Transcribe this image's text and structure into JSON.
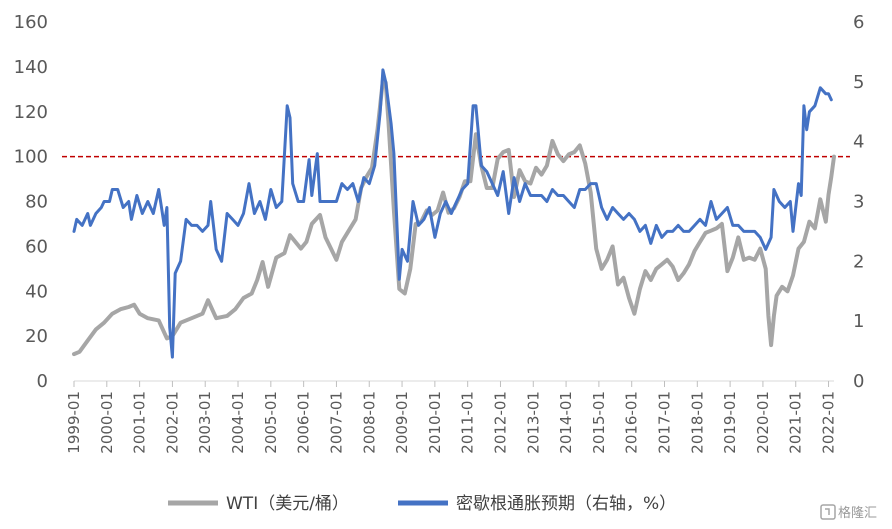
{
  "chart_data": {
    "type": "line",
    "xlabel": "",
    "ylabel_left": "",
    "ylabel_right": "",
    "ylim_left": [
      0,
      160
    ],
    "yticks_left": [
      0,
      20,
      40,
      60,
      80,
      100,
      120,
      140,
      160
    ],
    "ylim_right": [
      0,
      6
    ],
    "yticks_right": [
      0,
      1,
      2,
      3,
      4,
      5,
      6
    ],
    "x_start": "1999-01",
    "x_end": "2022-03",
    "x_tick_labels": [
      "1999-01",
      "2000-01",
      "2001-01",
      "2002-01",
      "2003-01",
      "2004-01",
      "2005-01",
      "2006-01",
      "2007-01",
      "2008-01",
      "2009-01",
      "2010-01",
      "2011-01",
      "2012-01",
      "2013-01",
      "2014-01",
      "2015-01",
      "2016-01",
      "2017-01",
      "2018-01",
      "2019-01",
      "2020-01",
      "2021-01",
      "2022-01"
    ],
    "reference_line": {
      "value": 100,
      "axis": "left",
      "color": "#c00000",
      "style": "dashed"
    },
    "grid": false,
    "legend_position": "bottom",
    "series": [
      {
        "name": "WTI（美元/桶）",
        "axis": "left",
        "color": "#a6a6a6",
        "points": [
          [
            "1999-01",
            12
          ],
          [
            "1999-03",
            13
          ],
          [
            "1999-06",
            18
          ],
          [
            "1999-09",
            23
          ],
          [
            "1999-12",
            26
          ],
          [
            "2000-03",
            30
          ],
          [
            "2000-06",
            32
          ],
          [
            "2000-09",
            33
          ],
          [
            "2000-11",
            34
          ],
          [
            "2001-01",
            30
          ],
          [
            "2001-04",
            28
          ],
          [
            "2001-08",
            27
          ],
          [
            "2001-11",
            19
          ],
          [
            "2002-01",
            20
          ],
          [
            "2002-04",
            26
          ],
          [
            "2002-08",
            28
          ],
          [
            "2002-12",
            30
          ],
          [
            "2003-02",
            36
          ],
          [
            "2003-05",
            28
          ],
          [
            "2003-09",
            29
          ],
          [
            "2003-12",
            32
          ],
          [
            "2004-03",
            37
          ],
          [
            "2004-06",
            39
          ],
          [
            "2004-08",
            45
          ],
          [
            "2004-10",
            53
          ],
          [
            "2004-12",
            42
          ],
          [
            "2005-03",
            55
          ],
          [
            "2005-06",
            57
          ],
          [
            "2005-08",
            65
          ],
          [
            "2005-10",
            62
          ],
          [
            "2005-12",
            59
          ],
          [
            "2006-02",
            62
          ],
          [
            "2006-04",
            70
          ],
          [
            "2006-07",
            74
          ],
          [
            "2006-09",
            64
          ],
          [
            "2006-11",
            59
          ],
          [
            "2007-01",
            54
          ],
          [
            "2007-03",
            62
          ],
          [
            "2007-06",
            68
          ],
          [
            "2007-08",
            72
          ],
          [
            "2007-10",
            86
          ],
          [
            "2007-12",
            91
          ],
          [
            "2008-02",
            95
          ],
          [
            "2008-04",
            112
          ],
          [
            "2008-06",
            134
          ],
          [
            "2008-07",
            133
          ],
          [
            "2008-08",
            116
          ],
          [
            "2008-10",
            76
          ],
          [
            "2008-12",
            41
          ],
          [
            "2009-02",
            39
          ],
          [
            "2009-04",
            50
          ],
          [
            "2009-06",
            70
          ],
          [
            "2009-08",
            71
          ],
          [
            "2009-10",
            76
          ],
          [
            "2009-12",
            74
          ],
          [
            "2010-02",
            76
          ],
          [
            "2010-04",
            84
          ],
          [
            "2010-06",
            75
          ],
          [
            "2010-08",
            77
          ],
          [
            "2010-10",
            82
          ],
          [
            "2010-12",
            89
          ],
          [
            "2011-02",
            89
          ],
          [
            "2011-04",
            110
          ],
          [
            "2011-06",
            96
          ],
          [
            "2011-08",
            86
          ],
          [
            "2011-10",
            86
          ],
          [
            "2011-12",
            99
          ],
          [
            "2012-02",
            102
          ],
          [
            "2012-04",
            103
          ],
          [
            "2012-06",
            82
          ],
          [
            "2012-08",
            94
          ],
          [
            "2012-10",
            89
          ],
          [
            "2012-12",
            88
          ],
          [
            "2013-02",
            95
          ],
          [
            "2013-04",
            92
          ],
          [
            "2013-06",
            96
          ],
          [
            "2013-08",
            107
          ],
          [
            "2013-10",
            101
          ],
          [
            "2013-12",
            98
          ],
          [
            "2014-02",
            101
          ],
          [
            "2014-04",
            102
          ],
          [
            "2014-06",
            105
          ],
          [
            "2014-08",
            97
          ],
          [
            "2014-10",
            84
          ],
          [
            "2014-12",
            59
          ],
          [
            "2015-02",
            50
          ],
          [
            "2015-04",
            54
          ],
          [
            "2015-06",
            60
          ],
          [
            "2015-08",
            43
          ],
          [
            "2015-10",
            46
          ],
          [
            "2015-12",
            37
          ],
          [
            "2016-02",
            30
          ],
          [
            "2016-04",
            41
          ],
          [
            "2016-06",
            49
          ],
          [
            "2016-08",
            45
          ],
          [
            "2016-10",
            50
          ],
          [
            "2016-12",
            52
          ],
          [
            "2017-02",
            54
          ],
          [
            "2017-04",
            51
          ],
          [
            "2017-06",
            45
          ],
          [
            "2017-08",
            48
          ],
          [
            "2017-10",
            52
          ],
          [
            "2017-12",
            58
          ],
          [
            "2018-02",
            62
          ],
          [
            "2018-04",
            66
          ],
          [
            "2018-06",
            67
          ],
          [
            "2018-08",
            68
          ],
          [
            "2018-10",
            70
          ],
          [
            "2018-12",
            49
          ],
          [
            "2019-02",
            55
          ],
          [
            "2019-04",
            64
          ],
          [
            "2019-06",
            54
          ],
          [
            "2019-08",
            55
          ],
          [
            "2019-10",
            54
          ],
          [
            "2019-12",
            59
          ],
          [
            "2020-02",
            50
          ],
          [
            "2020-03",
            29
          ],
          [
            "2020-04",
            16
          ],
          [
            "2020-05",
            29
          ],
          [
            "2020-06",
            38
          ],
          [
            "2020-08",
            42
          ],
          [
            "2020-10",
            40
          ],
          [
            "2020-12",
            47
          ],
          [
            "2021-02",
            59
          ],
          [
            "2021-04",
            62
          ],
          [
            "2021-06",
            71
          ],
          [
            "2021-08",
            68
          ],
          [
            "2021-10",
            81
          ],
          [
            "2021-12",
            71
          ],
          [
            "2022-01",
            83
          ],
          [
            "2022-02",
            91
          ],
          [
            "2022-03",
            100
          ]
        ]
      },
      {
        "name": "密歇根通胀预期（右轴，%）",
        "axis": "right",
        "color": "#4472c4",
        "points": [
          [
            "1999-01",
            2.5
          ],
          [
            "1999-02",
            2.7
          ],
          [
            "1999-04",
            2.6
          ],
          [
            "1999-06",
            2.8
          ],
          [
            "1999-07",
            2.6
          ],
          [
            "1999-09",
            2.8
          ],
          [
            "1999-11",
            2.9
          ],
          [
            "1999-12",
            3.0
          ],
          [
            "2000-02",
            3.0
          ],
          [
            "2000-03",
            3.2
          ],
          [
            "2000-05",
            3.2
          ],
          [
            "2000-07",
            2.9
          ],
          [
            "2000-09",
            3.0
          ],
          [
            "2000-10",
            2.7
          ],
          [
            "2000-12",
            3.1
          ],
          [
            "2001-02",
            2.8
          ],
          [
            "2001-04",
            3.0
          ],
          [
            "2001-06",
            2.8
          ],
          [
            "2001-08",
            3.2
          ],
          [
            "2001-09",
            2.9
          ],
          [
            "2001-10",
            2.6
          ],
          [
            "2001-11",
            2.9
          ],
          [
            "2001-12",
            0.9
          ],
          [
            "2002-01",
            0.4
          ],
          [
            "2002-02",
            1.8
          ],
          [
            "2002-04",
            2.0
          ],
          [
            "2002-06",
            2.7
          ],
          [
            "2002-08",
            2.6
          ],
          [
            "2002-10",
            2.6
          ],
          [
            "2002-12",
            2.5
          ],
          [
            "2003-02",
            2.6
          ],
          [
            "2003-03",
            3.0
          ],
          [
            "2003-05",
            2.2
          ],
          [
            "2003-07",
            2.0
          ],
          [
            "2003-09",
            2.8
          ],
          [
            "2003-11",
            2.7
          ],
          [
            "2004-01",
            2.6
          ],
          [
            "2004-03",
            2.8
          ],
          [
            "2004-05",
            3.3
          ],
          [
            "2004-07",
            2.8
          ],
          [
            "2004-09",
            3.0
          ],
          [
            "2004-11",
            2.7
          ],
          [
            "2005-01",
            3.2
          ],
          [
            "2005-03",
            2.9
          ],
          [
            "2005-05",
            3.0
          ],
          [
            "2005-07",
            4.6
          ],
          [
            "2005-08",
            4.4
          ],
          [
            "2005-09",
            3.3
          ],
          [
            "2005-11",
            3.0
          ],
          [
            "2006-01",
            3.0
          ],
          [
            "2006-03",
            3.7
          ],
          [
            "2006-04",
            3.1
          ],
          [
            "2006-06",
            3.8
          ],
          [
            "2006-07",
            3.0
          ],
          [
            "2006-09",
            3.0
          ],
          [
            "2006-11",
            3.0
          ],
          [
            "2007-01",
            3.0
          ],
          [
            "2007-03",
            3.3
          ],
          [
            "2007-05",
            3.2
          ],
          [
            "2007-07",
            3.3
          ],
          [
            "2007-09",
            3.0
          ],
          [
            "2007-11",
            3.4
          ],
          [
            "2008-01",
            3.3
          ],
          [
            "2008-03",
            3.6
          ],
          [
            "2008-05",
            4.5
          ],
          [
            "2008-06",
            5.2
          ],
          [
            "2008-07",
            5.0
          ],
          [
            "2008-09",
            4.3
          ],
          [
            "2008-10",
            3.8
          ],
          [
            "2008-12",
            1.7
          ],
          [
            "2009-01",
            2.2
          ],
          [
            "2009-03",
            2.0
          ],
          [
            "2009-05",
            3.0
          ],
          [
            "2009-07",
            2.6
          ],
          [
            "2009-09",
            2.7
          ],
          [
            "2009-11",
            2.9
          ],
          [
            "2010-01",
            2.4
          ],
          [
            "2010-03",
            2.8
          ],
          [
            "2010-05",
            3.0
          ],
          [
            "2010-07",
            2.8
          ],
          [
            "2010-09",
            3.0
          ],
          [
            "2010-11",
            3.2
          ],
          [
            "2011-01",
            3.3
          ],
          [
            "2011-03",
            4.6
          ],
          [
            "2011-04",
            4.6
          ],
          [
            "2011-06",
            3.6
          ],
          [
            "2011-08",
            3.5
          ],
          [
            "2011-10",
            3.3
          ],
          [
            "2011-12",
            3.1
          ],
          [
            "2012-02",
            3.5
          ],
          [
            "2012-04",
            2.8
          ],
          [
            "2012-06",
            3.4
          ],
          [
            "2012-08",
            3.0
          ],
          [
            "2012-10",
            3.3
          ],
          [
            "2012-12",
            3.1
          ],
          [
            "2013-02",
            3.1
          ],
          [
            "2013-04",
            3.1
          ],
          [
            "2013-06",
            3.0
          ],
          [
            "2013-08",
            3.2
          ],
          [
            "2013-10",
            3.1
          ],
          [
            "2013-12",
            3.1
          ],
          [
            "2014-02",
            3.0
          ],
          [
            "2014-04",
            2.9
          ],
          [
            "2014-06",
            3.2
          ],
          [
            "2014-08",
            3.2
          ],
          [
            "2014-10",
            3.3
          ],
          [
            "2014-12",
            3.3
          ],
          [
            "2015-02",
            2.9
          ],
          [
            "2015-04",
            2.7
          ],
          [
            "2015-06",
            2.9
          ],
          [
            "2015-08",
            2.8
          ],
          [
            "2015-10",
            2.7
          ],
          [
            "2015-12",
            2.8
          ],
          [
            "2016-02",
            2.7
          ],
          [
            "2016-04",
            2.5
          ],
          [
            "2016-06",
            2.6
          ],
          [
            "2016-08",
            2.3
          ],
          [
            "2016-10",
            2.6
          ],
          [
            "2016-12",
            2.4
          ],
          [
            "2017-02",
            2.5
          ],
          [
            "2017-04",
            2.5
          ],
          [
            "2017-06",
            2.6
          ],
          [
            "2017-08",
            2.5
          ],
          [
            "2017-10",
            2.5
          ],
          [
            "2017-12",
            2.6
          ],
          [
            "2018-02",
            2.7
          ],
          [
            "2018-04",
            2.6
          ],
          [
            "2018-06",
            3.0
          ],
          [
            "2018-08",
            2.7
          ],
          [
            "2018-10",
            2.8
          ],
          [
            "2018-12",
            2.9
          ],
          [
            "2019-02",
            2.6
          ],
          [
            "2019-04",
            2.6
          ],
          [
            "2019-06",
            2.5
          ],
          [
            "2019-08",
            2.5
          ],
          [
            "2019-10",
            2.5
          ],
          [
            "2019-12",
            2.4
          ],
          [
            "2020-02",
            2.2
          ],
          [
            "2020-04",
            2.4
          ],
          [
            "2020-05",
            3.2
          ],
          [
            "2020-07",
            3.0
          ],
          [
            "2020-09",
            2.9
          ],
          [
            "2020-11",
            3.0
          ],
          [
            "2020-12",
            2.5
          ],
          [
            "2021-02",
            3.3
          ],
          [
            "2021-03",
            3.1
          ],
          [
            "2021-04",
            4.6
          ],
          [
            "2021-05",
            4.2
          ],
          [
            "2021-06",
            4.5
          ],
          [
            "2021-08",
            4.6
          ],
          [
            "2021-10",
            4.9
          ],
          [
            "2021-12",
            4.8
          ],
          [
            "2022-01",
            4.8
          ],
          [
            "2022-02",
            4.7
          ]
        ]
      }
    ]
  },
  "watermark": {
    "icon": "gelonghui-logo-icon",
    "text": "格隆汇"
  }
}
